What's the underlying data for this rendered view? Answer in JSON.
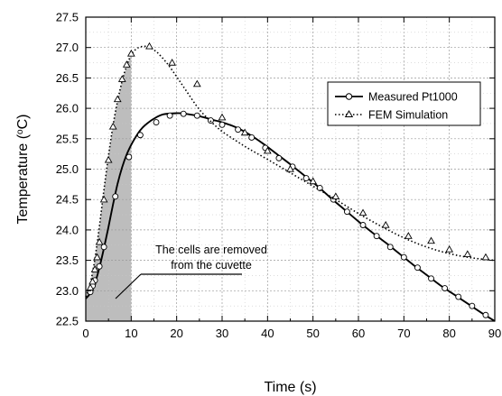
{
  "chart_data": {
    "type": "line",
    "xlabel": "Time (s)",
    "ylabel_parts": {
      "pre": "Temperature (",
      "sup": "o",
      "post": "C)"
    },
    "xlim": [
      0,
      90
    ],
    "ylim": [
      22.5,
      27.5
    ],
    "x_ticks": [
      0,
      10,
      20,
      30,
      40,
      50,
      60,
      70,
      80,
      90
    ],
    "y_ticks": [
      22.5,
      23.0,
      23.5,
      24.0,
      24.5,
      25.0,
      25.5,
      26.0,
      26.5,
      27.0,
      27.5
    ],
    "y_tick_labels": [
      "22.5",
      "23.0",
      "23.5",
      "24.0",
      "24.5",
      "25.0",
      "25.5",
      "26.0",
      "26.5",
      "27.0",
      "27.5"
    ],
    "grid": true,
    "legend_position": "upper-right",
    "shaded_region": {
      "x_start": 0,
      "x_end": 10,
      "color": "#bdbdbd"
    },
    "annotation": {
      "lines": [
        "The cells are removed",
        "from the cuvette"
      ]
    },
    "series": [
      {
        "name": "Measured Pt1000",
        "line_style": "solid",
        "marker": "circle",
        "x": [
          0,
          1,
          2,
          3,
          4,
          5,
          6,
          7,
          8,
          9,
          10,
          11,
          12,
          13,
          15,
          17,
          20,
          22,
          25,
          28,
          30,
          33,
          36,
          39,
          42,
          45,
          48,
          51,
          54,
          57,
          60,
          63,
          66,
          69,
          72,
          75,
          78,
          81,
          84,
          87,
          90
        ],
        "y": [
          22.87,
          22.96,
          23.12,
          23.38,
          23.7,
          24.05,
          24.42,
          24.76,
          25.03,
          25.24,
          25.4,
          25.53,
          25.64,
          25.72,
          25.83,
          25.9,
          25.92,
          25.91,
          25.87,
          25.81,
          25.77,
          25.69,
          25.57,
          25.42,
          25.25,
          25.08,
          24.9,
          24.72,
          24.52,
          24.33,
          24.14,
          23.96,
          23.79,
          23.61,
          23.43,
          23.26,
          23.09,
          22.94,
          22.79,
          22.64,
          22.5
        ],
        "x_markers": [
          1,
          1.5,
          2,
          3,
          4,
          6.5,
          9.5,
          12,
          15.5,
          18.5,
          21.5,
          24.5,
          27.5,
          30,
          33.5,
          36.5,
          39.5,
          42.5,
          45.5,
          48.5,
          51.5,
          54.5,
          57.5,
          61,
          64,
          67,
          70,
          73,
          76,
          79,
          82,
          85,
          88
        ],
        "y_markers": [
          22.98,
          23.08,
          23.17,
          23.4,
          23.72,
          24.55,
          25.2,
          25.56,
          25.77,
          25.88,
          25.91,
          25.88,
          25.8,
          25.73,
          25.65,
          25.52,
          25.35,
          25.18,
          25.04,
          24.85,
          24.69,
          24.5,
          24.3,
          24.08,
          23.9,
          23.72,
          23.55,
          23.38,
          23.2,
          23.04,
          22.9,
          22.75,
          22.6
        ]
      },
      {
        "name": "FEM Simulation",
        "line_style": "dotted",
        "marker": "triangle",
        "x": [
          0,
          0.5,
          1,
          1.5,
          2,
          2.5,
          3,
          3.5,
          4,
          5,
          6,
          7,
          8,
          9,
          10,
          11,
          12,
          13,
          14,
          15,
          16,
          18,
          20,
          22,
          25,
          28,
          30,
          33,
          36,
          40,
          45,
          50,
          55,
          60,
          65,
          70,
          75,
          80,
          85,
          90
        ],
        "y": [
          22.9,
          23.0,
          23.12,
          23.3,
          23.52,
          23.78,
          24.06,
          24.36,
          24.66,
          25.22,
          25.72,
          26.12,
          26.45,
          26.7,
          26.88,
          26.97,
          27.01,
          27.02,
          27.0,
          26.96,
          26.9,
          26.73,
          26.52,
          26.3,
          25.98,
          25.75,
          25.62,
          25.47,
          25.33,
          25.16,
          24.94,
          24.72,
          24.5,
          24.27,
          24.06,
          23.87,
          23.72,
          23.61,
          23.54,
          23.5
        ],
        "x_markers": [
          1,
          1.5,
          2,
          2.5,
          3,
          4,
          5,
          6,
          7,
          8,
          9,
          10,
          14,
          19,
          24.5,
          30,
          35,
          40,
          45,
          50,
          55,
          61,
          66,
          71,
          76,
          80,
          84,
          88
        ],
        "y_markers": [
          23.05,
          23.15,
          23.35,
          23.55,
          23.8,
          24.5,
          25.15,
          25.7,
          26.15,
          26.48,
          26.72,
          26.9,
          27.02,
          26.75,
          26.4,
          25.85,
          25.6,
          25.3,
          25.0,
          24.8,
          24.55,
          24.28,
          24.08,
          23.9,
          23.82,
          23.68,
          23.6,
          23.55
        ]
      }
    ]
  }
}
